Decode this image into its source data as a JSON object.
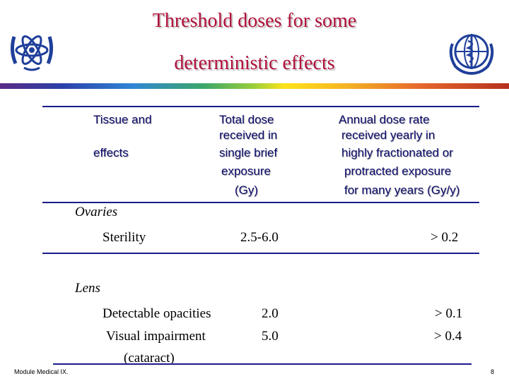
{
  "title": {
    "line1": "Threshold doses for some",
    "line2": "deterministic effects"
  },
  "logos": {
    "left": "iaea-atom-logo-icon",
    "right": "who-emblem-icon"
  },
  "table": {
    "headers": {
      "col1": [
        "Tissue and",
        "effects"
      ],
      "col2": [
        "Total dose",
        "received in",
        "single brief",
        "exposure",
        "(Gy)"
      ],
      "col3": [
        "Annual dose rate",
        "received yearly in",
        "highly fractionated or",
        "protracted exposure",
        "for many years (Gy/y)"
      ]
    },
    "sections": [
      {
        "name": "Ovaries",
        "rows": [
          {
            "effect": "Sterility",
            "single_dose": "2.5-6.0",
            "annual_rate": "> 0.2"
          }
        ]
      },
      {
        "name": "Lens",
        "rows": [
          {
            "effect": "Detectable  opacities",
            "single_dose": "2.0",
            "annual_rate": "> 0.1"
          },
          {
            "effect": "Visual  impairment",
            "effect_line2": "(cataract)",
            "single_dose": "5.0",
            "annual_rate": "> 0.4"
          }
        ]
      }
    ]
  },
  "footer": {
    "module": "Module Medical IX.",
    "page": "8"
  },
  "colors": {
    "title": "#b0103a",
    "header_text": "#0b0b6a",
    "rule": "#1a1a8a",
    "logo": "#1f3f9a"
  }
}
